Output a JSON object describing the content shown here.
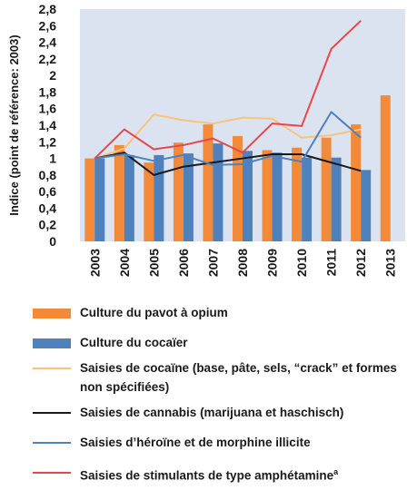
{
  "chart_data": {
    "type": "bar+line",
    "ylabel": "Indice (point de référence: 2003)",
    "ylim": [
      0,
      2.8
    ],
    "yticks": [
      "0",
      "0,2",
      "0,4",
      "0,6",
      "0,8",
      "1",
      "1,2",
      "1,4",
      "1,6",
      "1,8",
      "2",
      "2,2",
      "2,4",
      "2,6",
      "2,8"
    ],
    "categories": [
      "2003",
      "2004",
      "2005",
      "2006",
      "2007",
      "2008",
      "2009",
      "2010",
      "2011",
      "2012",
      "2013"
    ],
    "bars": [
      {
        "name": "Culture du pavot à opium",
        "color": "#f28a3a",
        "values": [
          1.0,
          1.16,
          0.95,
          1.19,
          1.41,
          1.27,
          1.1,
          1.13,
          1.25,
          1.41,
          1.76
        ]
      },
      {
        "name": "Culture du cocaïer",
        "color": "#4f81bd",
        "values": [
          1.0,
          1.04,
          1.04,
          1.06,
          1.18,
          1.09,
          1.07,
          1.01,
          1.01,
          0.86,
          null
        ]
      }
    ],
    "lines": [
      {
        "name": "Saisies de cocaïne (base, pâte, sels, “crack” et formes non spécifiées)",
        "color": "#f9c37a",
        "values": [
          1.0,
          1.12,
          1.53,
          1.46,
          1.42,
          1.49,
          1.48,
          1.25,
          1.28,
          1.35,
          null
        ]
      },
      {
        "name": "Saisies de cannabis (marijuana et haschisch)",
        "color": "#1a1a1a",
        "values": [
          1.0,
          1.07,
          0.8,
          0.9,
          0.95,
          1.0,
          1.05,
          1.05,
          0.95,
          0.85,
          null
        ]
      },
      {
        "name": "Saisies d’héroïne et de morphine illicite",
        "color": "#4f81bd",
        "values": [
          1.0,
          1.05,
          0.97,
          1.04,
          0.92,
          0.93,
          1.03,
          0.96,
          1.56,
          1.25,
          null
        ]
      },
      {
        "name": "Saisies de stimulants de type amphétamine",
        "name_sup": "a",
        "color": "#e8474a",
        "values": [
          1.0,
          1.35,
          1.11,
          1.16,
          1.24,
          1.07,
          1.42,
          1.39,
          2.32,
          2.66,
          null
        ]
      }
    ],
    "grid": false,
    "background": "#dbe3f1",
    "legend_position": "bottom"
  }
}
